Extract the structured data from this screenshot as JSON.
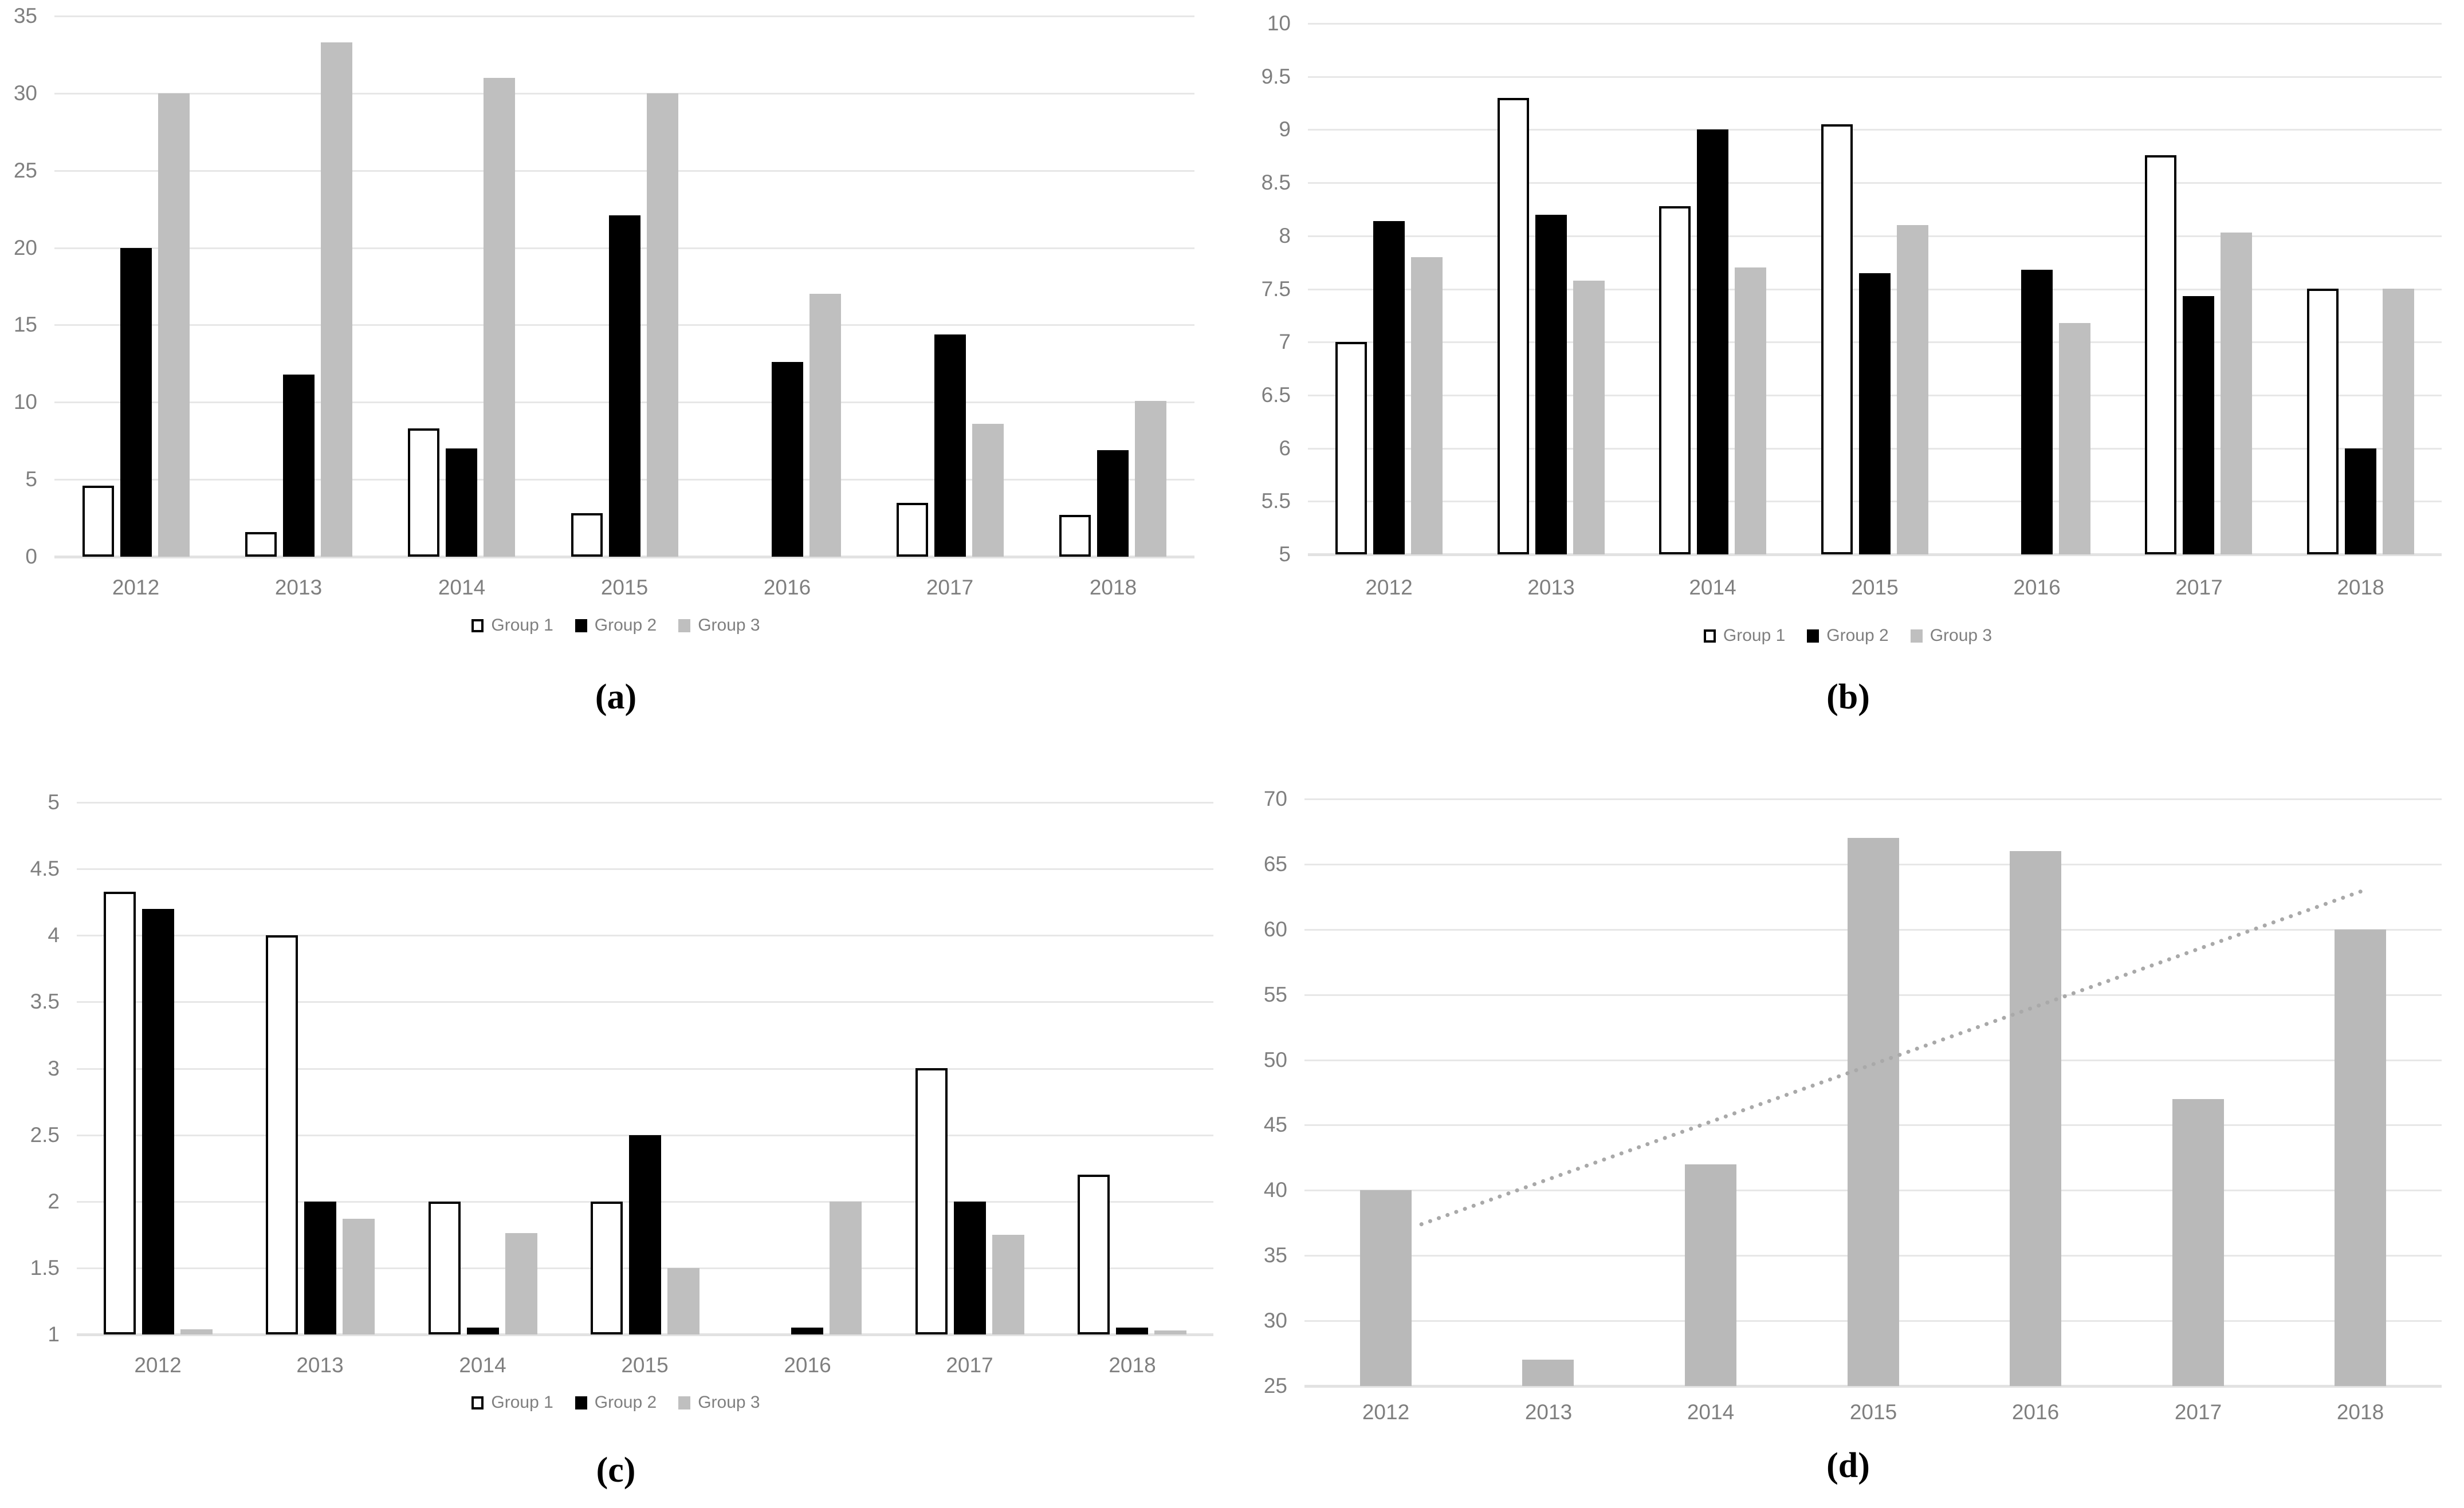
{
  "figure": {
    "description": "Four-panel grouped bar chart figure",
    "panel_labels": [
      "(a)",
      "(b)",
      "(c)",
      "(d)"
    ]
  },
  "colors": {
    "background": "#ffffff",
    "bar_group1_fill": "#ffffff",
    "bar_group1_border": "#000000",
    "bar_group2": "#000000",
    "bar_group3": "#bfbfbf",
    "bar_single_gray": "#b9b9b9",
    "gridline": "#e7e7e7",
    "axis_line": "#e2e2e2",
    "axis_text": "#7f7f7f",
    "legend_text": "#7f7f7f",
    "caption_text": "#000000",
    "trendline": "#a9a9a9"
  },
  "chart_data": [
    {
      "id": "a",
      "caption": "(a)",
      "type": "bar",
      "categories": [
        "2012",
        "2013",
        "2014",
        "2015",
        "2016",
        "2017",
        "2018"
      ],
      "series": [
        {
          "name": "Group 1",
          "swatch": "outline",
          "values": [
            4.6,
            1.6,
            8.3,
            2.8,
            null,
            3.5,
            2.7
          ]
        },
        {
          "name": "Group 2",
          "swatch": "black",
          "values": [
            20,
            11.8,
            7.0,
            22.1,
            12.6,
            14.4,
            6.9
          ]
        },
        {
          "name": "Group 3",
          "swatch": "gray",
          "values": [
            30,
            33.3,
            31,
            30,
            17,
            8.6,
            10.1
          ]
        }
      ],
      "ylim": [
        0,
        35
      ],
      "ystep": 5,
      "grid": true,
      "legend": true,
      "legend_position": "bottom"
    },
    {
      "id": "b",
      "caption": "(b)",
      "type": "bar",
      "categories": [
        "2012",
        "2013",
        "2014",
        "2015",
        "2016",
        "2017",
        "2018"
      ],
      "series": [
        {
          "name": "Group 1",
          "swatch": "outline",
          "values": [
            7.0,
            9.3,
            8.28,
            9.05,
            null,
            8.76,
            7.5
          ]
        },
        {
          "name": "Group 2",
          "swatch": "black",
          "values": [
            8.14,
            8.2,
            9.0,
            7.65,
            7.68,
            7.43,
            6.0
          ]
        },
        {
          "name": "Group 3",
          "swatch": "gray",
          "values": [
            7.8,
            7.58,
            7.7,
            8.1,
            7.18,
            8.03,
            7.5
          ]
        }
      ],
      "ylim": [
        5,
        10
      ],
      "ystep": 0.5,
      "grid": true,
      "legend": true,
      "legend_position": "bottom"
    },
    {
      "id": "c",
      "caption": "(c)",
      "type": "bar",
      "categories": [
        "2012",
        "2013",
        "2014",
        "2015",
        "2016",
        "2017",
        "2018"
      ],
      "series": [
        {
          "name": "Group 1",
          "swatch": "outline",
          "values": [
            4.33,
            4.0,
            2.0,
            2.0,
            null,
            3.0,
            2.2
          ]
        },
        {
          "name": "Group 2",
          "swatch": "black",
          "values": [
            4.2,
            2.0,
            1.05,
            2.5,
            1.05,
            2.0,
            1.05
          ]
        },
        {
          "name": "Group 3",
          "swatch": "gray",
          "values": [
            1.04,
            1.87,
            1.76,
            1.5,
            2.0,
            1.75,
            1.03
          ]
        }
      ],
      "ylim": [
        1,
        5
      ],
      "ystep": 0.5,
      "grid": true,
      "legend": true,
      "legend_position": "bottom"
    },
    {
      "id": "d",
      "caption": "(d)",
      "type": "bar",
      "categories": [
        "2012",
        "2013",
        "2014",
        "2015",
        "2016",
        "2017",
        "2018"
      ],
      "series": [
        {
          "name": "",
          "swatch": "solid-gray",
          "values": [
            40,
            27,
            42,
            67,
            66,
            47,
            60
          ]
        }
      ],
      "ylim": [
        25,
        70
      ],
      "ystep": 5,
      "grid": true,
      "legend": false,
      "trendline": {
        "style": "dotted",
        "from_band": 0.72,
        "from_value": 37.4,
        "to_band": 6.5,
        "to_value": 62.9
      }
    }
  ]
}
